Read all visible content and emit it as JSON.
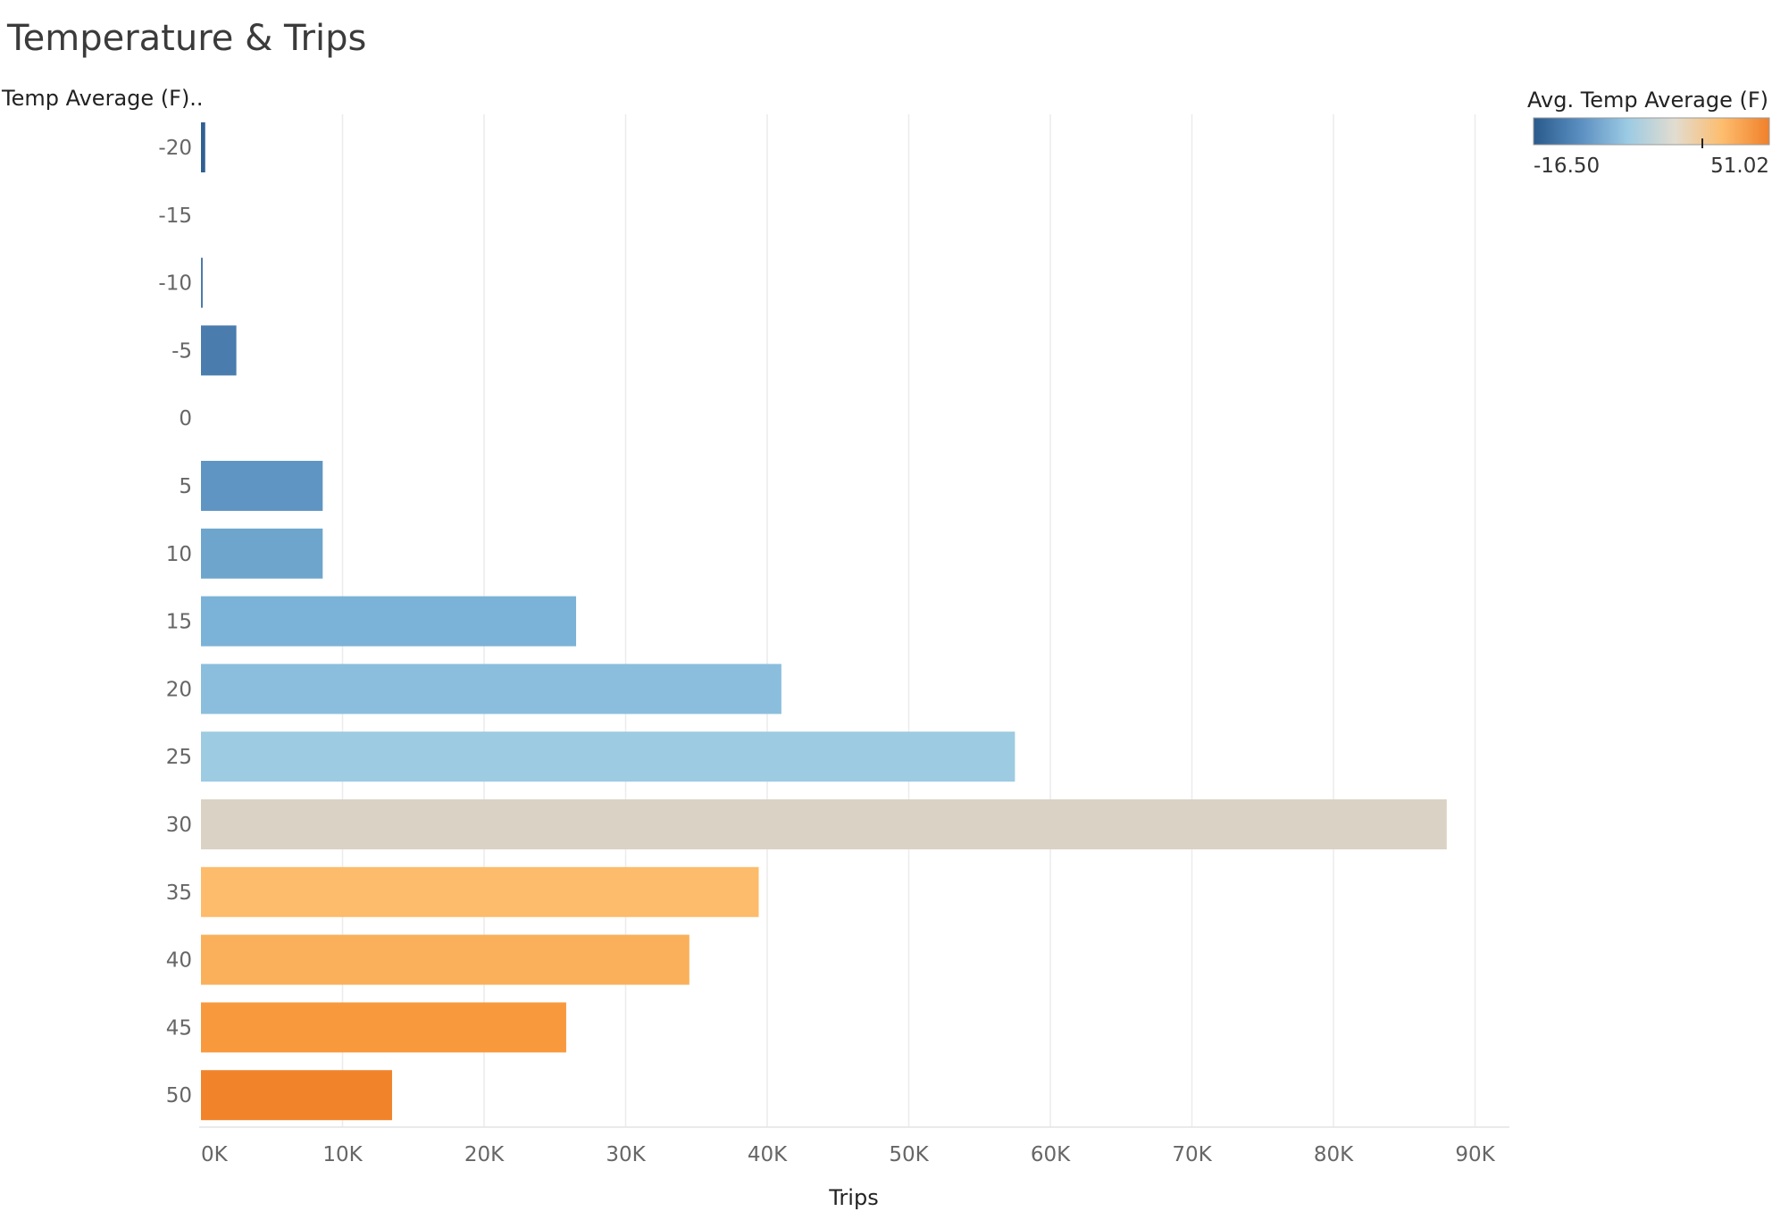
{
  "chart_data": {
    "type": "bar",
    "orientation": "horizontal",
    "title": "Temperature & Trips",
    "ylabel": "Temp Average (F)..",
    "xlabel": "Trips",
    "categories": [
      "-20",
      "-15",
      "-10",
      "-5",
      "0",
      "5",
      "10",
      "15",
      "20",
      "25",
      "30",
      "35",
      "40",
      "45",
      "50"
    ],
    "values": [
      300,
      null,
      80,
      2500,
      null,
      8600,
      8600,
      26500,
      41000,
      57500,
      88000,
      39400,
      34500,
      25800,
      13500
    ],
    "colors": [
      "#2f5f93",
      null,
      "#4d7ba8",
      "#4a7cae",
      null,
      "#5f95c2",
      "#6da5cc",
      "#7bb2d8",
      "#8bbedd",
      "#9dcbe2",
      "#dad2c5",
      "#fdbc6b",
      "#fab05a",
      "#f8993e",
      "#f1842b"
    ],
    "x_ticks": [
      "0K",
      "10K",
      "20K",
      "30K",
      "40K",
      "50K",
      "60K",
      "70K",
      "80K",
      "90K"
    ],
    "xlim": [
      0,
      92000
    ],
    "grid": true,
    "legend": {
      "title": "Avg. Temp Average (F)",
      "min_label": "-16.50",
      "max_label": "51.02",
      "position": "top-right",
      "gradient_colors": [
        "#2a5a8c",
        "#5b8fc1",
        "#9ccbe4",
        "#e2dccf",
        "#fdbd6e",
        "#f0802a"
      ]
    }
  }
}
